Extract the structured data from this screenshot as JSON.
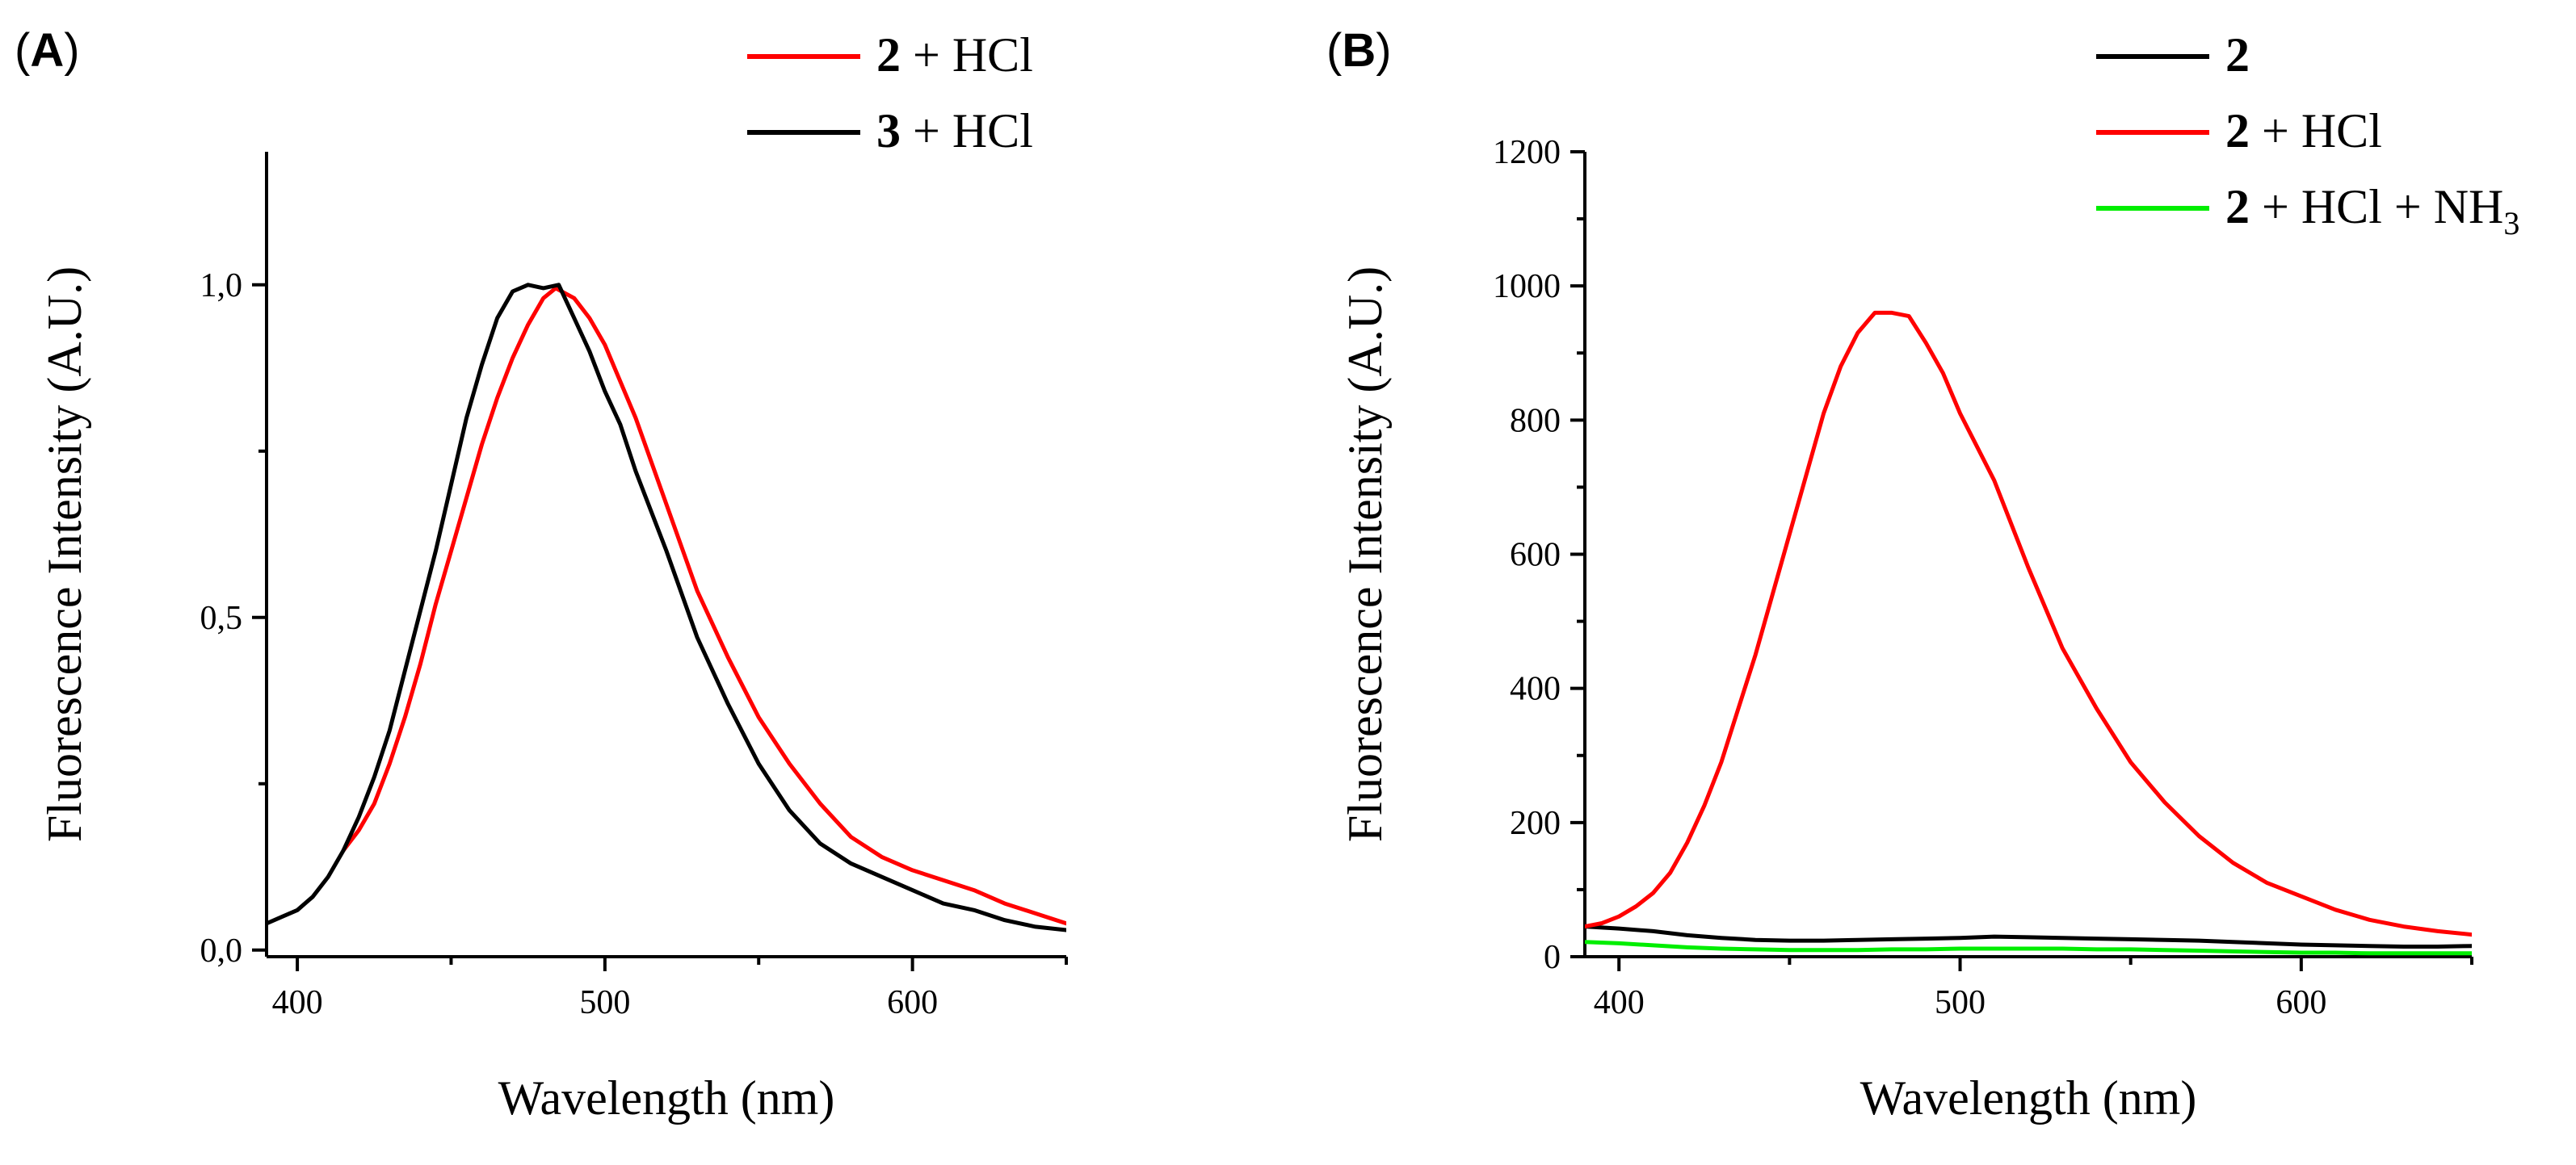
{
  "chart_data": [
    {
      "panel": "A",
      "type": "line",
      "title": "",
      "xlabel": "Wavelength (nm)",
      "ylabel": "Fluorescence Intensity (A.U.)",
      "xlim": [
        390,
        650
      ],
      "ylim": [
        -0.01,
        1.2
      ],
      "xticks": [
        400,
        500,
        600
      ],
      "xtick_labels": [
        "400",
        "500",
        "600"
      ],
      "yticks": [
        0.0,
        0.5,
        1.0
      ],
      "ytick_labels": [
        "0,0",
        "0,5",
        "1,0"
      ],
      "legend_position": "top-right",
      "series": [
        {
          "name": "2 + HCl",
          "compound": "2",
          "label": "+ HCl",
          "color": "#ff0000",
          "x": [
            415,
            420,
            425,
            430,
            435,
            440,
            445,
            450,
            455,
            460,
            465,
            470,
            475,
            480,
            484,
            490,
            495,
            500,
            510,
            520,
            530,
            540,
            550,
            560,
            570,
            580,
            590,
            600,
            610,
            620,
            630,
            640,
            650
          ],
          "y": [
            0.15,
            0.18,
            0.22,
            0.28,
            0.35,
            0.43,
            0.52,
            0.6,
            0.68,
            0.76,
            0.83,
            0.89,
            0.94,
            0.98,
            0.995,
            0.98,
            0.95,
            0.91,
            0.8,
            0.67,
            0.54,
            0.44,
            0.35,
            0.28,
            0.22,
            0.17,
            0.14,
            0.12,
            0.105,
            0.09,
            0.07,
            0.055,
            0.04
          ]
        },
        {
          "name": "3 + HCl",
          "compound": "3",
          "label": "+ HCl",
          "color": "#000000",
          "x": [
            390,
            395,
            400,
            405,
            410,
            415,
            420,
            425,
            430,
            435,
            440,
            445,
            450,
            455,
            460,
            465,
            470,
            475,
            480,
            485,
            490,
            495,
            500,
            505,
            510,
            520,
            530,
            540,
            550,
            560,
            570,
            580,
            590,
            600,
            610,
            620,
            630,
            640,
            650
          ],
          "y": [
            0.04,
            0.05,
            0.06,
            0.08,
            0.11,
            0.15,
            0.2,
            0.26,
            0.33,
            0.42,
            0.51,
            0.6,
            0.7,
            0.8,
            0.88,
            0.95,
            0.99,
            1.0,
            0.995,
            1.0,
            0.95,
            0.9,
            0.84,
            0.79,
            0.72,
            0.6,
            0.47,
            0.37,
            0.28,
            0.21,
            0.16,
            0.13,
            0.11,
            0.09,
            0.07,
            0.06,
            0.045,
            0.035,
            0.03
          ]
        }
      ]
    },
    {
      "panel": "B",
      "type": "line",
      "title": "",
      "xlabel": "Wavelength (nm)",
      "ylabel": "Fluorescence Intensity (A.U.)",
      "xlim": [
        390,
        650
      ],
      "ylim": [
        0,
        1200
      ],
      "xticks": [
        400,
        500,
        600
      ],
      "xtick_labels": [
        "400",
        "500",
        "600"
      ],
      "yticks": [
        0,
        200,
        400,
        600,
        800,
        1000,
        1200
      ],
      "ytick_labels": [
        "0",
        "200",
        "400",
        "600",
        "800",
        "1000",
        "1200"
      ],
      "legend_position": "top-right",
      "series": [
        {
          "name": "2",
          "compound": "2",
          "label": "",
          "sub": "",
          "color": "#000000",
          "x": [
            390,
            400,
            410,
            420,
            430,
            440,
            450,
            460,
            470,
            480,
            490,
            500,
            510,
            520,
            530,
            540,
            550,
            560,
            570,
            580,
            590,
            600,
            610,
            620,
            630,
            640,
            650
          ],
          "y": [
            45,
            42,
            38,
            32,
            28,
            25,
            24,
            24,
            25,
            26,
            27,
            28,
            30,
            29,
            28,
            27,
            26,
            25,
            24,
            22,
            20,
            18,
            17,
            16,
            15,
            15,
            16
          ]
        },
        {
          "name": "2 + HCl",
          "compound": "2",
          "label": "+ HCl",
          "sub": "",
          "color": "#ff0000",
          "x": [
            390,
            395,
            400,
            405,
            410,
            415,
            420,
            425,
            430,
            435,
            440,
            445,
            450,
            455,
            460,
            465,
            470,
            475,
            480,
            485,
            490,
            495,
            500,
            505,
            510,
            520,
            530,
            540,
            550,
            560,
            570,
            580,
            590,
            600,
            610,
            620,
            630,
            640,
            650
          ],
          "y": [
            45,
            50,
            60,
            75,
            95,
            125,
            170,
            225,
            290,
            370,
            450,
            540,
            630,
            720,
            810,
            880,
            930,
            960,
            960,
            955,
            915,
            870,
            810,
            760,
            710,
            580,
            460,
            370,
            290,
            230,
            180,
            140,
            110,
            90,
            70,
            55,
            45,
            38,
            33
          ]
        },
        {
          "name": "2 + HCl + NH3",
          "compound": "2",
          "label": "+ HCl + NH",
          "sub": "3",
          "color": "#00ee00",
          "x": [
            390,
            400,
            410,
            420,
            430,
            440,
            450,
            460,
            470,
            480,
            490,
            500,
            510,
            520,
            530,
            540,
            550,
            560,
            570,
            580,
            590,
            600,
            610,
            620,
            630,
            640,
            650
          ],
          "y": [
            22,
            20,
            17,
            14,
            12,
            11,
            10,
            10,
            10,
            11,
            11,
            12,
            12,
            12,
            12,
            11,
            11,
            10,
            9,
            8,
            7,
            6,
            6,
            5,
            5,
            5,
            5
          ]
        }
      ]
    }
  ]
}
